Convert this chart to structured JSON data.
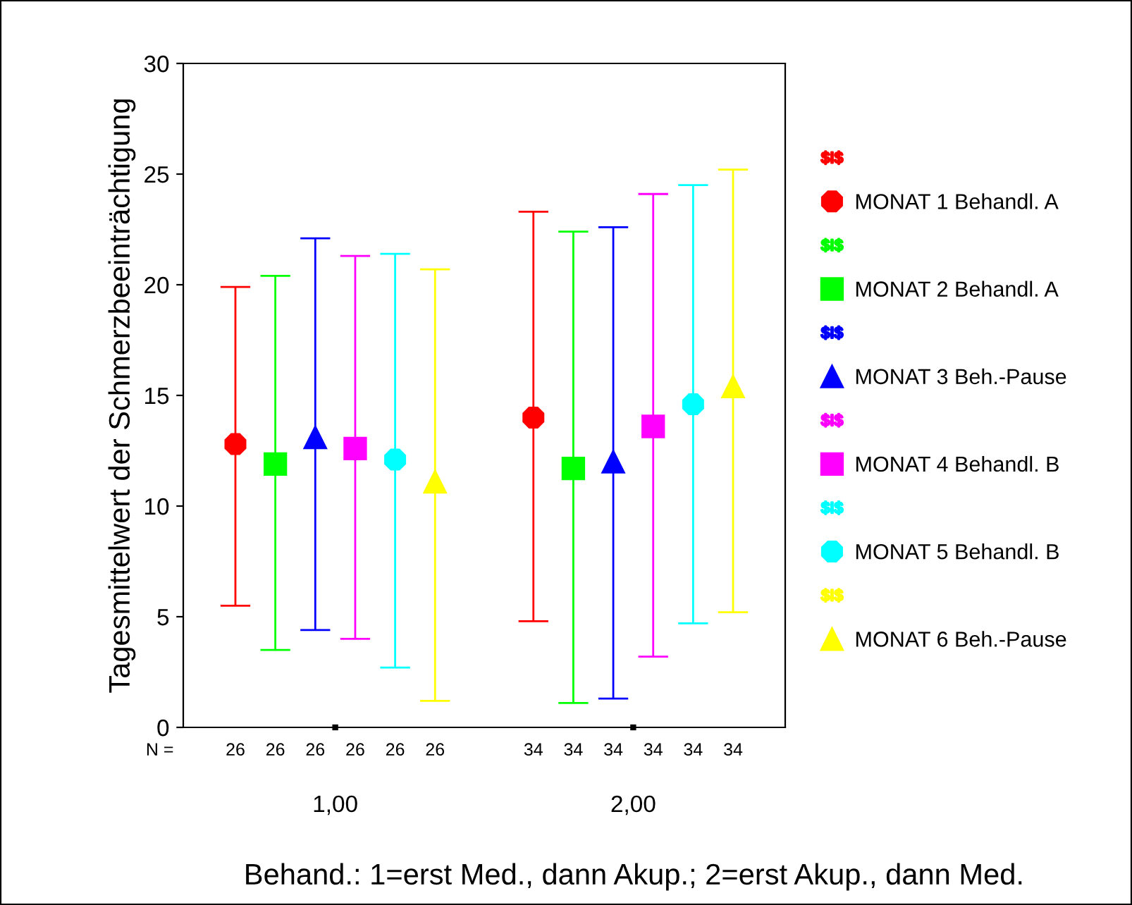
{
  "chart_data": {
    "type": "scatter",
    "ylabel": "Tagesmittelwert der Schmerzbeeinträchtigung",
    "xlabel": "Behand.: 1=erst Med., dann Akup.; 2=erst Akup., dann Med.",
    "categories": [
      "1,00",
      "2,00"
    ],
    "series": [
      {
        "name": "MONAT 1 Behandl. A",
        "color": "#ff0000",
        "marker": "circle",
        "values": [
          12.8,
          14.0
        ],
        "errors": [
          [
            5.5,
            19.9
          ],
          [
            4.8,
            23.3
          ]
        ]
      },
      {
        "name": "MONAT 2 Behandl. A",
        "color": "#00ff00",
        "marker": "square",
        "values": [
          11.9,
          11.7
        ],
        "errors": [
          [
            3.5,
            20.4
          ],
          [
            1.1,
            22.4
          ]
        ]
      },
      {
        "name": "MONAT 3 Beh.-Pause",
        "color": "#0000ff",
        "marker": "triangle",
        "values": [
          13.1,
          12.0
        ],
        "errors": [
          [
            4.4,
            22.1
          ],
          [
            1.3,
            22.6
          ]
        ]
      },
      {
        "name": "MONAT 4 Behandl. B",
        "color": "#ff00ff",
        "marker": "square",
        "values": [
          12.6,
          13.6
        ],
        "errors": [
          [
            4.0,
            21.3
          ],
          [
            3.2,
            24.1
          ]
        ]
      },
      {
        "name": "MONAT 5 Behandl. B",
        "color": "#00ffff",
        "marker": "circle",
        "values": [
          12.1,
          14.6
        ],
        "errors": [
          [
            2.7,
            21.4
          ],
          [
            4.7,
            24.5
          ]
        ]
      },
      {
        "name": "MONAT 6 Beh.-Pause",
        "color": "#ffff00",
        "marker": "triangle",
        "values": [
          11.1,
          15.4
        ],
        "errors": [
          [
            1.2,
            20.7
          ],
          [
            5.2,
            25.2
          ]
        ]
      }
    ],
    "ylim": [
      0,
      30
    ],
    "yticks": [
      0,
      5,
      10,
      15,
      20,
      25,
      30
    ],
    "grid": false,
    "legend": "right",
    "annotations": [
      "N =",
      "26",
      "26",
      "26",
      "26",
      "26",
      "26",
      "34",
      "34",
      "34",
      "34",
      "34",
      "34"
    ]
  }
}
